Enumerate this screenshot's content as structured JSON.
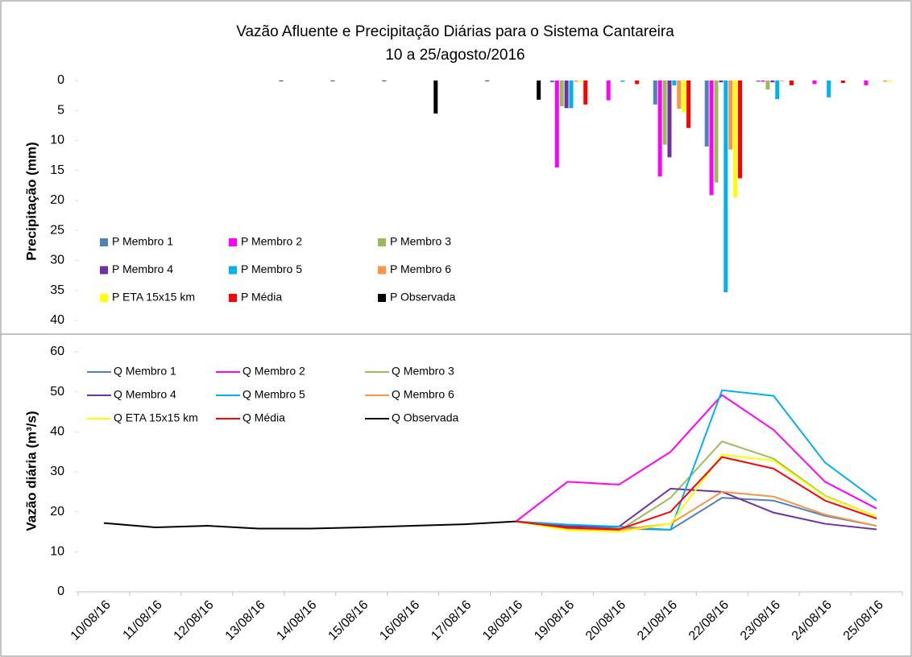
{
  "chart_data": [
    {
      "type": "bar",
      "title": "Vazão Afluente e Precipitação Diárias para o Sistema Cantareira",
      "subtitle": "10 a 25/agosto/2016",
      "y_label": "Precipitação (mm)",
      "ylim": [
        0,
        40
      ],
      "y_reversed": true,
      "yticks": [
        0,
        5,
        10,
        15,
        20,
        25,
        30,
        35,
        40
      ],
      "legend": "bottom-left",
      "series": [
        {
          "name": "P Membro 1",
          "color": "#4f81bd",
          "values": [
            null,
            null,
            null,
            null,
            null,
            null,
            null,
            null,
            null,
            0.3,
            0,
            4.0,
            11.0,
            0.2,
            0,
            0
          ]
        },
        {
          "name": "P Membro 2",
          "color": "#ff00ff",
          "values": [
            null,
            null,
            null,
            null,
            null,
            null,
            null,
            null,
            null,
            14.5,
            3.3,
            16.0,
            19.1,
            0.2,
            0.6,
            0.8
          ]
        },
        {
          "name": "P Membro 3",
          "color": "#9bbb59",
          "values": [
            null,
            null,
            null,
            null,
            null,
            null,
            null,
            null,
            null,
            4.3,
            0,
            10.7,
            17.0,
            1.5,
            0,
            0
          ]
        },
        {
          "name": "P Membro 4",
          "color": "#7030a0",
          "values": [
            null,
            null,
            null,
            null,
            null,
            null,
            null,
            null,
            null,
            4.6,
            0,
            12.8,
            0.3,
            0.3,
            0,
            0
          ]
        },
        {
          "name": "P Membro 5",
          "color": "#00b0f0",
          "values": [
            null,
            null,
            null,
            null,
            null,
            null,
            null,
            null,
            null,
            4.6,
            0.2,
            0.8,
            35.3,
            3.1,
            2.8,
            0
          ]
        },
        {
          "name": "P Membro 6",
          "color": "#f79646",
          "values": [
            null,
            null,
            null,
            null,
            null,
            null,
            null,
            null,
            null,
            0.2,
            0,
            4.7,
            11.5,
            0.1,
            0,
            0.2
          ]
        },
        {
          "name": "P ETA 15x15 km",
          "color": "#ffff00",
          "values": [
            null,
            null,
            null,
            null,
            null,
            null,
            null,
            null,
            null,
            0.2,
            0,
            5.3,
            19.5,
            0,
            0,
            0.2
          ]
        },
        {
          "name": "P Média",
          "color": "#ff0000",
          "values": [
            null,
            null,
            null,
            null,
            null,
            null,
            null,
            null,
            null,
            4.0,
            0.6,
            7.9,
            16.3,
            0.8,
            0.4,
            0
          ]
        },
        {
          "name": "P Observada",
          "color": "#000000",
          "values": [
            0,
            0,
            0,
            0.1,
            0.1,
            0.1,
            5.5,
            0.1,
            3.2,
            null,
            null,
            null,
            null,
            null,
            null,
            null
          ]
        }
      ]
    },
    {
      "type": "line",
      "y_label": "Vazão diária (m³/s)",
      "categories": [
        "10/08/16",
        "11/08/16",
        "12/08/16",
        "13/08/16",
        "14/08/16",
        "15/08/16",
        "16/08/16",
        "17/08/16",
        "18/08/16",
        "19/08/16",
        "20/08/16",
        "21/08/16",
        "22/08/16",
        "23/08/16",
        "24/08/16",
        "25/08/16"
      ],
      "ylim": [
        0,
        60
      ],
      "yticks": [
        0,
        10,
        20,
        30,
        40,
        50,
        60
      ],
      "legend": "top-left",
      "series": [
        {
          "name": "Q Membro 1",
          "color": "#4f81bd",
          "values": [
            null,
            null,
            null,
            null,
            null,
            null,
            null,
            null,
            17.6,
            16.5,
            15.8,
            15.5,
            23.5,
            22.8,
            19.0,
            16.5
          ]
        },
        {
          "name": "Q Membro 2",
          "color": "#ff00ff",
          "values": [
            null,
            null,
            null,
            null,
            null,
            null,
            null,
            null,
            17.6,
            27.5,
            26.8,
            35.0,
            49.2,
            40.5,
            27.5,
            20.8
          ]
        },
        {
          "name": "Q Membro 3",
          "color": "#9bbb59",
          "values": [
            null,
            null,
            null,
            null,
            null,
            null,
            null,
            null,
            17.6,
            15.8,
            15.3,
            23.5,
            37.6,
            33.3,
            24.0,
            18.8
          ]
        },
        {
          "name": "Q Membro 4",
          "color": "#7030a0",
          "values": [
            null,
            null,
            null,
            null,
            null,
            null,
            null,
            null,
            17.6,
            16.3,
            16.3,
            25.8,
            25.0,
            19.8,
            17.0,
            15.6
          ]
        },
        {
          "name": "Q Membro 5",
          "color": "#00b0f0",
          "values": [
            null,
            null,
            null,
            null,
            null,
            null,
            null,
            null,
            17.6,
            16.8,
            16.3,
            15.5,
            50.4,
            49.0,
            32.3,
            22.8
          ]
        },
        {
          "name": "Q Membro 6",
          "color": "#f79646",
          "values": [
            null,
            null,
            null,
            null,
            null,
            null,
            null,
            null,
            17.6,
            16.0,
            15.5,
            17.0,
            25.0,
            23.8,
            19.3,
            16.5
          ]
        },
        {
          "name": "Q ETA 15x15 km",
          "color": "#ffff00",
          "values": [
            null,
            null,
            null,
            null,
            null,
            null,
            null,
            null,
            17.6,
            15.4,
            15.0,
            17.0,
            34.3,
            32.8,
            23.8,
            18.8
          ]
        },
        {
          "name": "Q Média",
          "color": "#ff0000",
          "values": [
            null,
            null,
            null,
            null,
            null,
            null,
            null,
            null,
            17.6,
            16.0,
            15.6,
            20.0,
            33.7,
            30.8,
            22.8,
            18.3
          ]
        },
        {
          "name": "Q Observada",
          "color": "#000000",
          "values": [
            17.2,
            16.1,
            16.5,
            15.8,
            15.8,
            16.1,
            16.5,
            16.9,
            17.6,
            null,
            null,
            null,
            null,
            null,
            null,
            null
          ]
        }
      ]
    }
  ]
}
